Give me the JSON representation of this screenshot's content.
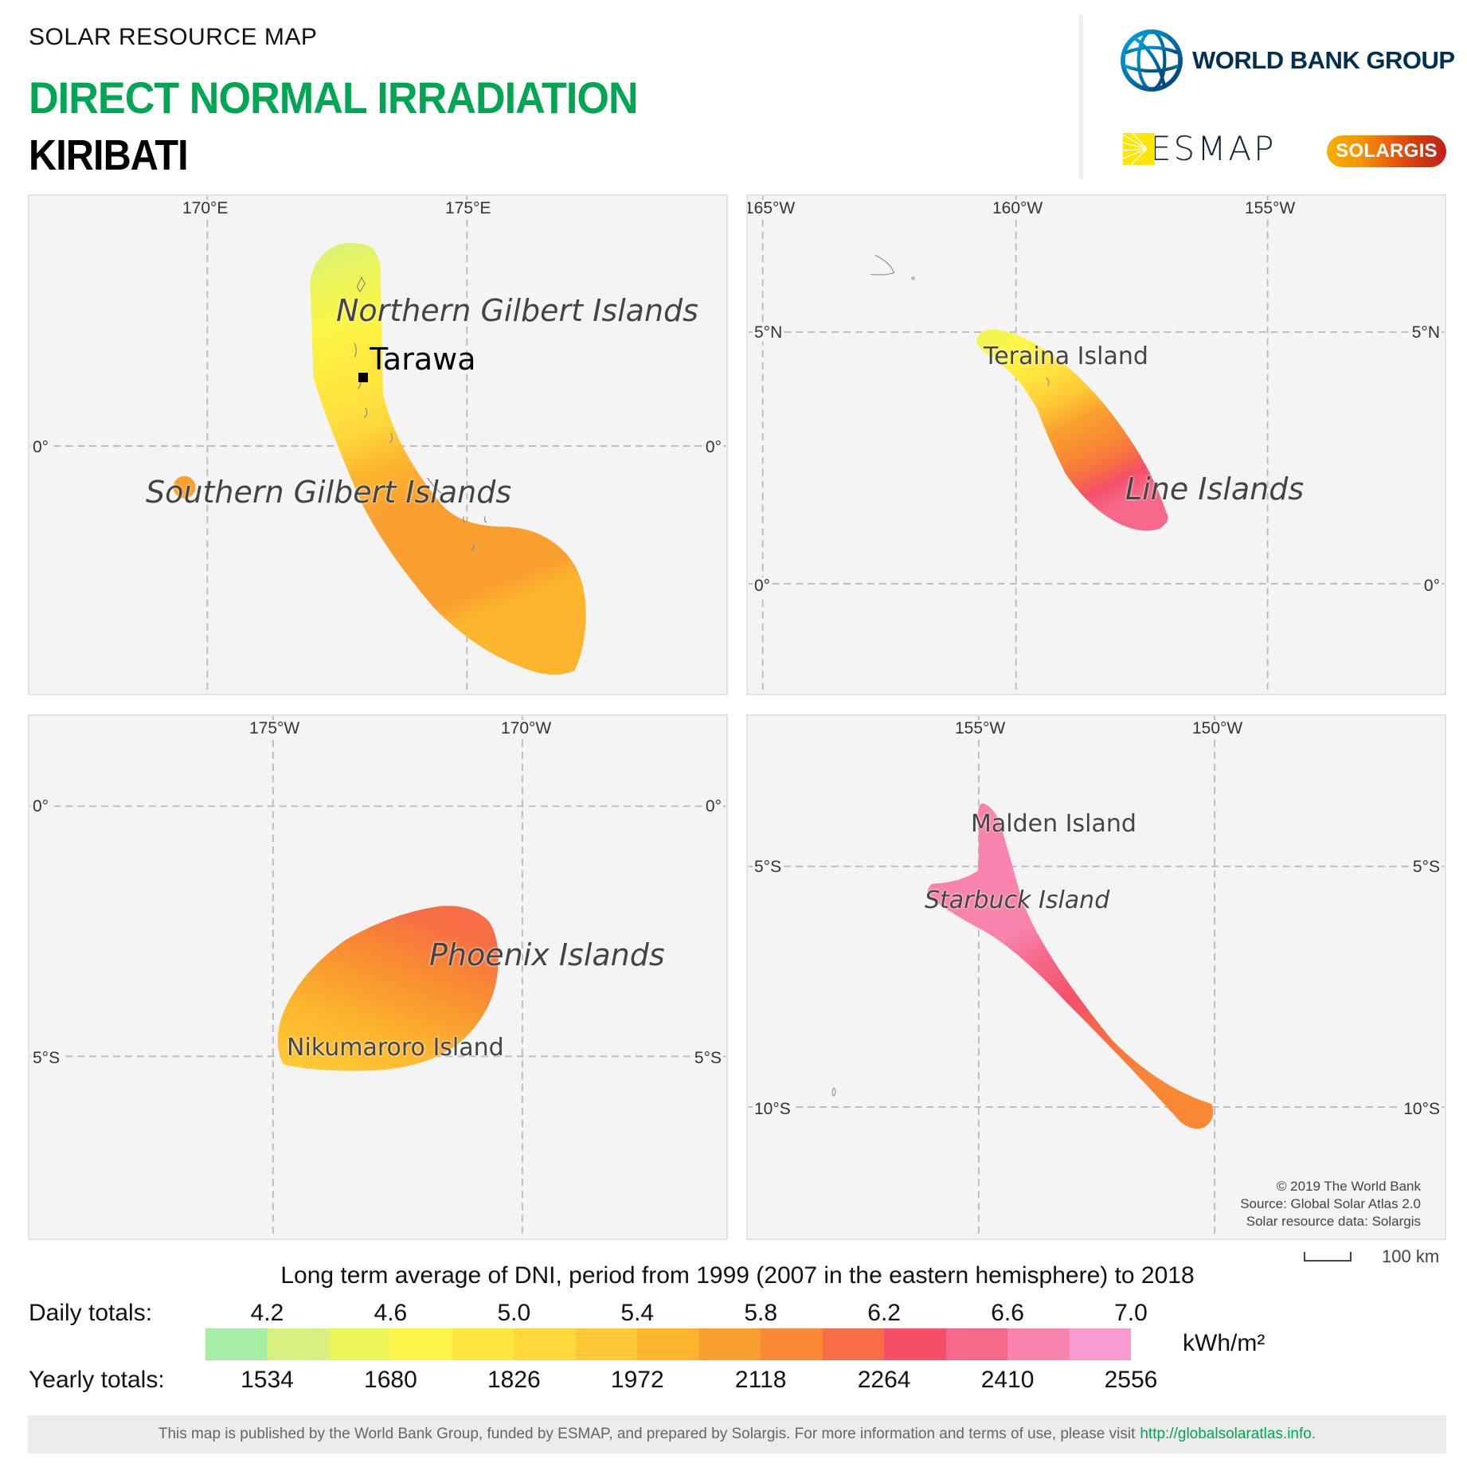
{
  "header": {
    "subtitle": "SOLAR RESOURCE MAP",
    "title": "DIRECT NORMAL IRRADIATION",
    "country": "KIRIBATI",
    "title_color": "#00a651"
  },
  "logos": {
    "world_bank": "WORLD BANK GROUP",
    "esmap": "ESMAP",
    "solargis": "SOLARGIS"
  },
  "panels": {
    "northwest": {
      "lon_labels": [
        "170°E",
        "175°E"
      ],
      "lat_labels": [
        "0°",
        "0°"
      ],
      "places": [
        "Northern Gilbert Islands",
        "Southern Gilbert Islands"
      ],
      "capital": "Tarawa"
    },
    "northeast": {
      "lon_labels": [
        "165°W",
        "160°W",
        "155°W"
      ],
      "lat_labels": [
        "5°N",
        "5°N",
        "0°",
        "0°"
      ],
      "places": [
        "Teraina Island",
        "Line Islands"
      ]
    },
    "southwest": {
      "lon_labels": [
        "175°W",
        "170°W"
      ],
      "lat_labels": [
        "0°",
        "0°",
        "5°S",
        "5°S"
      ],
      "places": [
        "Phoenix Islands",
        "Nikumaroro Island"
      ]
    },
    "southeast": {
      "lon_labels": [
        "155°W",
        "150°W"
      ],
      "lat_labels": [
        "5°S",
        "5°S",
        "10°S",
        "10°S"
      ],
      "places": [
        "Malden Island",
        "Starbuck Island"
      ],
      "attribution": [
        "© 2019 The World Bank",
        "Source: Global Solar Atlas 2.0",
        "Solar resource data: Solargis"
      ]
    }
  },
  "scale_bar": {
    "label": "100 km"
  },
  "legend": {
    "title": "Long term average of DNI, period from 1999 (2007 in the eastern hemisphere) to 2018",
    "daily_label": "Daily totals:",
    "yearly_label": "Yearly totals:",
    "daily_values": [
      "4.2",
      "4.6",
      "5.0",
      "5.4",
      "5.8",
      "6.2",
      "6.6",
      "7.0"
    ],
    "yearly_values": [
      "1534",
      "1680",
      "1826",
      "1972",
      "2118",
      "2264",
      "2410",
      "2556"
    ],
    "unit": "kWh/m²",
    "colors": [
      "#a6eda6",
      "#d7f07f",
      "#eef556",
      "#fcf547",
      "#ffe63e",
      "#ffd93c",
      "#ffc935",
      "#fdb52e",
      "#f99f2f",
      "#f98734",
      "#f76d45",
      "#f54f67",
      "#f5688a",
      "#f783ae",
      "#f99ad0"
    ]
  },
  "footer": {
    "text": "This map is published by the World Bank Group, funded by ESMAP, and prepared by Solargis. For more information and terms of use, please visit",
    "link": "http://globalsolaratlas.info."
  }
}
